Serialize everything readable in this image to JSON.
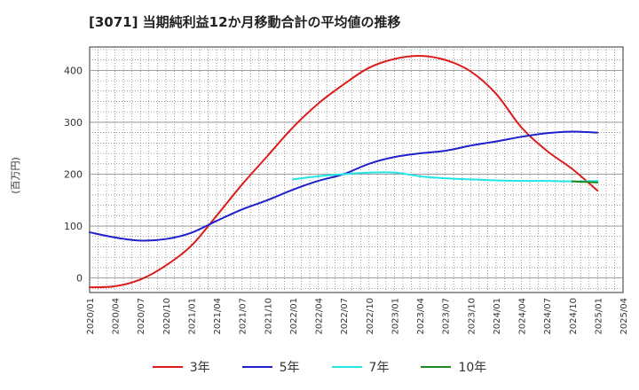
{
  "chart_data": {
    "type": "line",
    "title": "[3071]  当期純利益12か月移動合計の平均値の推移",
    "ylabel": "(百万円)",
    "xlabel": "",
    "ylim": [
      -28,
      445
    ],
    "xlim": [
      "2020-01",
      "2025-04"
    ],
    "y_ticks": [
      0,
      100,
      200,
      300,
      400
    ],
    "x_ticks": [
      "2020/01",
      "2020/04",
      "2020/07",
      "2020/10",
      "2021/01",
      "2021/04",
      "2021/07",
      "2021/10",
      "2022/01",
      "2022/04",
      "2022/07",
      "2022/10",
      "2023/01",
      "2023/04",
      "2023/07",
      "2023/10",
      "2024/01",
      "2024/04",
      "2024/07",
      "2024/10",
      "2025/01",
      "2025/04"
    ],
    "grid": true,
    "legend_position": "bottom",
    "series": [
      {
        "name": "3年",
        "color": "#dd1c1c",
        "points": [
          [
            "2020-01",
            -18
          ],
          [
            "2020-04",
            -16
          ],
          [
            "2020-07",
            -3
          ],
          [
            "2020-10",
            24
          ],
          [
            "2021-01",
            62
          ],
          [
            "2021-04",
            120
          ],
          [
            "2021-07",
            180
          ],
          [
            "2021-10",
            235
          ],
          [
            "2022-01",
            290
          ],
          [
            "2022-04",
            336
          ],
          [
            "2022-07",
            373
          ],
          [
            "2022-10",
            405
          ],
          [
            "2023-01",
            422
          ],
          [
            "2023-04",
            428
          ],
          [
            "2023-07",
            420
          ],
          [
            "2023-10",
            398
          ],
          [
            "2024-01",
            355
          ],
          [
            "2024-04",
            290
          ],
          [
            "2024-07",
            245
          ],
          [
            "2024-10",
            210
          ],
          [
            "2025-01",
            168
          ]
        ]
      },
      {
        "name": "5年",
        "color": "#1f1fcc",
        "points": [
          [
            "2020-01",
            88
          ],
          [
            "2020-04",
            78
          ],
          [
            "2020-07",
            72
          ],
          [
            "2020-10",
            75
          ],
          [
            "2021-01",
            87
          ],
          [
            "2021-04",
            110
          ],
          [
            "2021-07",
            132
          ],
          [
            "2021-10",
            150
          ],
          [
            "2022-01",
            170
          ],
          [
            "2022-04",
            187
          ],
          [
            "2022-07",
            200
          ],
          [
            "2022-10",
            220
          ],
          [
            "2023-01",
            233
          ],
          [
            "2023-04",
            240
          ],
          [
            "2023-07",
            245
          ],
          [
            "2023-10",
            255
          ],
          [
            "2024-01",
            263
          ],
          [
            "2024-04",
            272
          ],
          [
            "2024-07",
            279
          ],
          [
            "2024-10",
            282
          ],
          [
            "2025-01",
            280
          ]
        ]
      },
      {
        "name": "7年",
        "color": "#22e5e5",
        "points": [
          [
            "2022-01",
            190
          ],
          [
            "2022-04",
            196
          ],
          [
            "2022-07",
            200
          ],
          [
            "2022-10",
            203
          ],
          [
            "2023-01",
            203
          ],
          [
            "2023-04",
            196
          ],
          [
            "2023-07",
            192
          ],
          [
            "2023-10",
            190
          ],
          [
            "2024-01",
            188
          ],
          [
            "2024-04",
            187
          ],
          [
            "2024-07",
            187
          ],
          [
            "2024-10",
            186
          ],
          [
            "2025-01",
            187
          ]
        ]
      },
      {
        "name": "10年",
        "color": "#1f8a1f",
        "points": [
          [
            "2024-10",
            186
          ],
          [
            "2025-01",
            184
          ]
        ]
      }
    ]
  }
}
